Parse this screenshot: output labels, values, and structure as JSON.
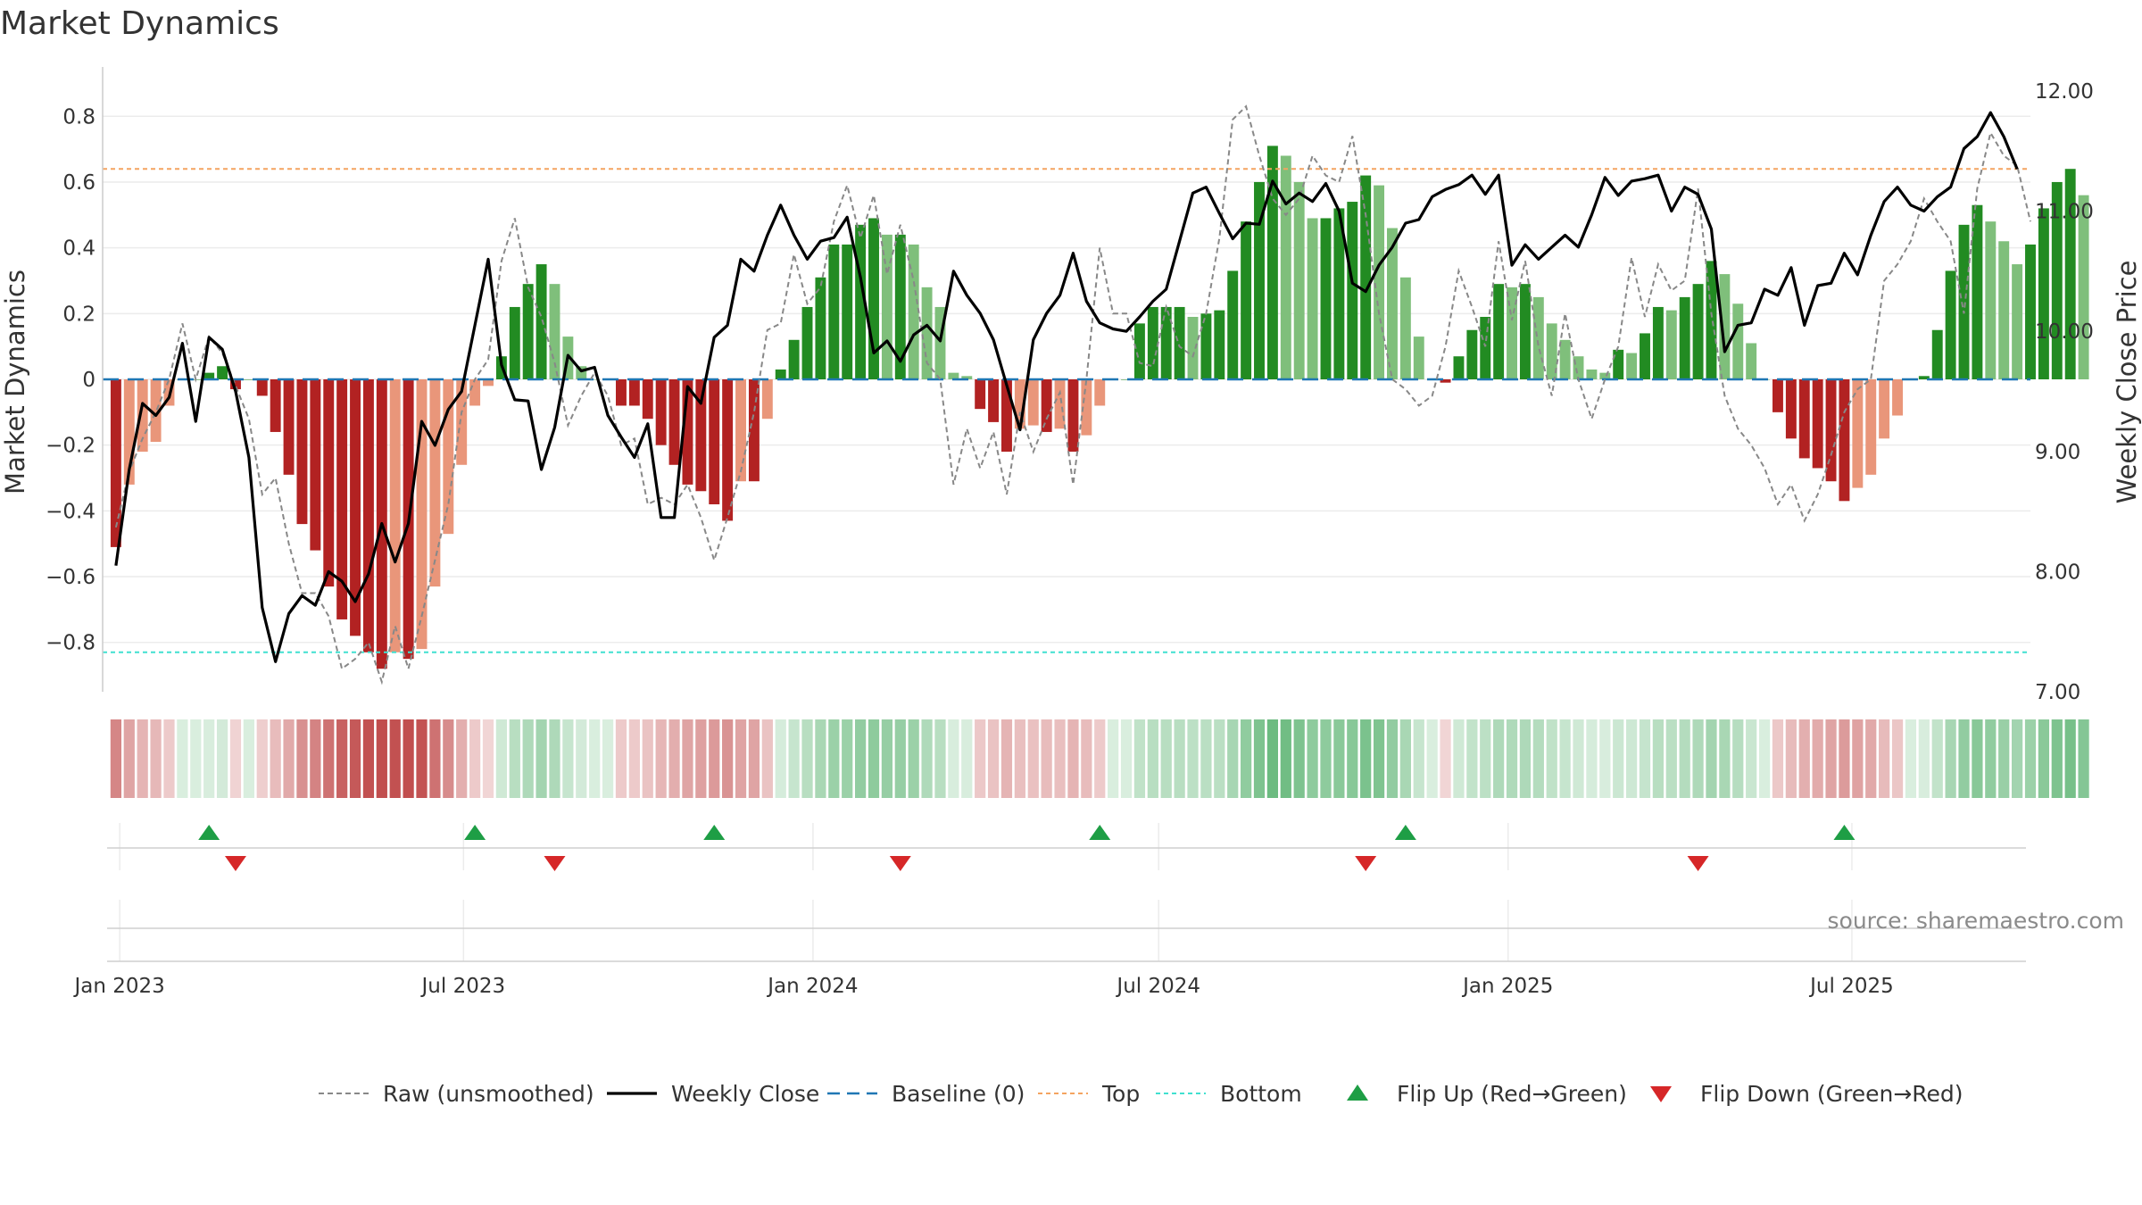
{
  "chart_data": {
    "type": "bar",
    "title": "Market Dynamics",
    "ylabel": "Market Dynamics",
    "y2label": "Weekly Close Price",
    "ylim": [
      -0.95,
      0.95
    ],
    "y2lim": [
      7.0,
      12.2
    ],
    "yticks": [
      -0.8,
      -0.6,
      -0.4,
      -0.2,
      0,
      0.2,
      0.4,
      0.6,
      0.8
    ],
    "yticklabels": [
      "−0.8",
      "−0.6",
      "−0.4",
      "−0.2",
      "0",
      "0.2",
      "0.4",
      "0.6",
      "0.8"
    ],
    "y2ticks": [
      7,
      8,
      9,
      10,
      11,
      12
    ],
    "y2ticklabels": [
      "7.00",
      "8.00",
      "9.00",
      "10.00",
      "11.00",
      "12.00"
    ],
    "x_start": "2022-12-23",
    "x_end": "2025-10-03",
    "xticks": [
      "2023-01-01",
      "2023-07-01",
      "2024-01-01",
      "2024-07-01",
      "2025-01-01",
      "2025-07-01"
    ],
    "xticklabels": [
      "Jan 2023",
      "Jul 2023",
      "Jan 2024",
      "Jul 2024",
      "Jan 2025",
      "Jul 2025"
    ],
    "first_week": "2022-12-30",
    "top_line": 0.64,
    "bottom_line": -0.83,
    "baseline": 0,
    "grid": true,
    "legend_position": "bottom",
    "colors": {
      "strong_green": "#228b22",
      "light_green": "#7fbf7b",
      "strong_red": "#b22222",
      "light_red": "#e9967a",
      "raw": "#888888",
      "close": "#000000",
      "baseline": "#1f77b4",
      "top": "#f4a460",
      "bottom": "#40e0d0",
      "flip_up": "#1e9e45",
      "flip_down": "#d62728"
    },
    "series": [
      {
        "name": "Market Dynamics",
        "values": [
          -0.51,
          -0.32,
          -0.22,
          -0.19,
          -0.08,
          0.0,
          0.0,
          0.02,
          0.04,
          -0.03,
          0.0,
          -0.05,
          -0.16,
          -0.29,
          -0.44,
          -0.52,
          -0.63,
          -0.73,
          -0.78,
          -0.83,
          -0.88,
          -0.83,
          -0.85,
          -0.82,
          -0.63,
          -0.47,
          -0.26,
          -0.08,
          -0.02,
          0.07,
          0.22,
          0.29,
          0.35,
          0.29,
          0.13,
          0.04,
          0.0,
          0.0,
          -0.08,
          -0.08,
          -0.12,
          -0.2,
          -0.26,
          -0.32,
          -0.34,
          -0.38,
          -0.43,
          -0.31,
          -0.31,
          -0.12,
          0.03,
          0.12,
          0.22,
          0.31,
          0.41,
          0.41,
          0.47,
          0.49,
          0.44,
          0.44,
          0.41,
          0.28,
          0.22,
          0.02,
          0.01,
          -0.09,
          -0.13,
          -0.22,
          -0.15,
          -0.14,
          -0.16,
          -0.15,
          -0.22,
          -0.17,
          -0.08,
          0.0,
          0.0,
          0.17,
          0.22,
          0.22,
          0.22,
          0.19,
          0.2,
          0.21,
          0.33,
          0.48,
          0.6,
          0.71,
          0.68,
          0.6,
          0.49,
          0.49,
          0.52,
          0.54,
          0.62,
          0.59,
          0.46,
          0.31,
          0.13,
          0.0,
          -0.01,
          0.07,
          0.15,
          0.19,
          0.29,
          0.28,
          0.29,
          0.25,
          0.17,
          0.12,
          0.07,
          0.03,
          0.02,
          0.09,
          0.08,
          0.14,
          0.22,
          0.21,
          0.25,
          0.29,
          0.36,
          0.32,
          0.23,
          0.11,
          0.0,
          -0.1,
          -0.18,
          -0.24,
          -0.27,
          -0.31,
          -0.37,
          -0.33,
          -0.29,
          -0.18,
          -0.11,
          0.0,
          0.01,
          0.15,
          0.33,
          0.47,
          0.53,
          0.48,
          0.42,
          0.35,
          0.41,
          0.52,
          0.6,
          0.64,
          0.56
        ]
      },
      {
        "name": "Raw (unsmoothed)",
        "values": [
          -0.45,
          -0.28,
          -0.18,
          -0.1,
          0.0,
          0.17,
          0.0,
          0.13,
          0.08,
          -0.02,
          -0.12,
          -0.35,
          -0.3,
          -0.5,
          -0.65,
          -0.65,
          -0.72,
          -0.88,
          -0.85,
          -0.8,
          -0.92,
          -0.75,
          -0.88,
          -0.72,
          -0.55,
          -0.38,
          -0.1,
          0.0,
          0.06,
          0.36,
          0.49,
          0.28,
          0.19,
          0.05,
          -0.14,
          -0.05,
          0.02,
          -0.05,
          -0.2,
          -0.18,
          -0.38,
          -0.36,
          -0.38,
          -0.32,
          -0.42,
          -0.55,
          -0.42,
          -0.28,
          -0.1,
          0.15,
          0.17,
          0.38,
          0.23,
          0.28,
          0.48,
          0.59,
          0.43,
          0.56,
          0.32,
          0.47,
          0.3,
          0.05,
          0.0,
          -0.32,
          -0.15,
          -0.27,
          -0.16,
          -0.35,
          -0.1,
          -0.22,
          -0.12,
          -0.04,
          -0.32,
          0.0,
          0.4,
          0.2,
          0.2,
          0.05,
          0.04,
          0.22,
          0.1,
          0.07,
          0.2,
          0.43,
          0.79,
          0.83,
          0.68,
          0.55,
          0.5,
          0.55,
          0.68,
          0.62,
          0.6,
          0.74,
          0.5,
          0.2,
          0.0,
          -0.03,
          -0.08,
          -0.05,
          0.1,
          0.33,
          0.22,
          0.1,
          0.42,
          0.18,
          0.36,
          0.1,
          -0.05,
          0.2,
          0.0,
          -0.12,
          0.0,
          0.1,
          0.37,
          0.19,
          0.35,
          0.27,
          0.3,
          0.58,
          0.2,
          -0.05,
          -0.15,
          -0.2,
          -0.27,
          -0.38,
          -0.32,
          -0.43,
          -0.35,
          -0.23,
          -0.1,
          -0.03,
          0.0,
          0.3,
          0.35,
          0.42,
          0.55,
          0.48,
          0.42,
          0.2,
          0.58,
          0.75,
          0.68,
          0.65,
          0.48
        ]
      },
      {
        "name": "Weekly Close",
        "values": [
          8.05,
          8.85,
          9.4,
          9.3,
          9.45,
          9.9,
          9.25,
          9.95,
          9.85,
          9.5,
          8.95,
          7.7,
          7.25,
          7.65,
          7.8,
          7.72,
          8.0,
          7.92,
          7.75,
          7.98,
          8.4,
          8.08,
          8.4,
          9.25,
          9.05,
          9.35,
          9.5,
          10.05,
          10.6,
          9.72,
          9.43,
          9.42,
          8.85,
          9.2,
          9.8,
          9.67,
          9.7,
          9.3,
          9.12,
          8.95,
          9.23,
          8.45,
          8.45,
          9.54,
          9.4,
          9.95,
          10.05,
          10.6,
          10.5,
          10.8,
          11.05,
          10.8,
          10.6,
          10.75,
          10.78,
          10.95,
          10.45,
          9.82,
          9.92,
          9.75,
          9.97,
          10.05,
          9.92,
          10.5,
          10.3,
          10.15,
          9.93,
          9.55,
          9.18,
          9.93,
          10.15,
          10.3,
          10.65,
          10.25,
          10.07,
          10.02,
          10.0,
          10.12,
          10.25,
          10.35,
          10.75,
          11.15,
          11.2,
          10.98,
          10.77,
          10.9,
          10.89,
          11.25,
          11.06,
          11.15,
          11.08,
          11.23,
          11.0,
          10.4,
          10.33,
          10.55,
          10.7,
          10.9,
          10.93,
          11.12,
          11.18,
          11.22,
          11.3,
          11.14,
          11.3,
          10.55,
          10.72,
          10.6,
          10.7,
          10.8,
          10.7,
          10.97,
          11.28,
          11.13,
          11.25,
          11.27,
          11.3,
          11.0,
          11.2,
          11.14,
          10.85,
          9.83,
          10.05,
          10.07,
          10.35,
          10.3,
          10.53,
          10.05,
          10.38,
          10.4,
          10.65,
          10.47,
          10.8,
          11.08,
          11.2,
          11.05,
          11.0,
          11.12,
          11.2,
          11.52,
          11.62,
          11.82,
          11.62,
          11.35
        ]
      },
      {
        "name": "Baseline (0)",
        "values": []
      },
      {
        "name": "Top",
        "values": []
      },
      {
        "name": "Bottom",
        "values": []
      },
      {
        "name": "Flip Up (Red→Green)",
        "x": [
          "2023-02-17",
          "2023-07-07",
          "2023-11-10",
          "2024-05-31",
          "2024-11-08",
          "2025-06-27"
        ]
      },
      {
        "name": "Flip Down (Green→Red)",
        "x": [
          "2023-03-03",
          "2023-08-18",
          "2024-02-16",
          "2024-10-18",
          "2025-04-11"
        ]
      }
    ]
  },
  "source_text": "source: sharemaestro.com"
}
